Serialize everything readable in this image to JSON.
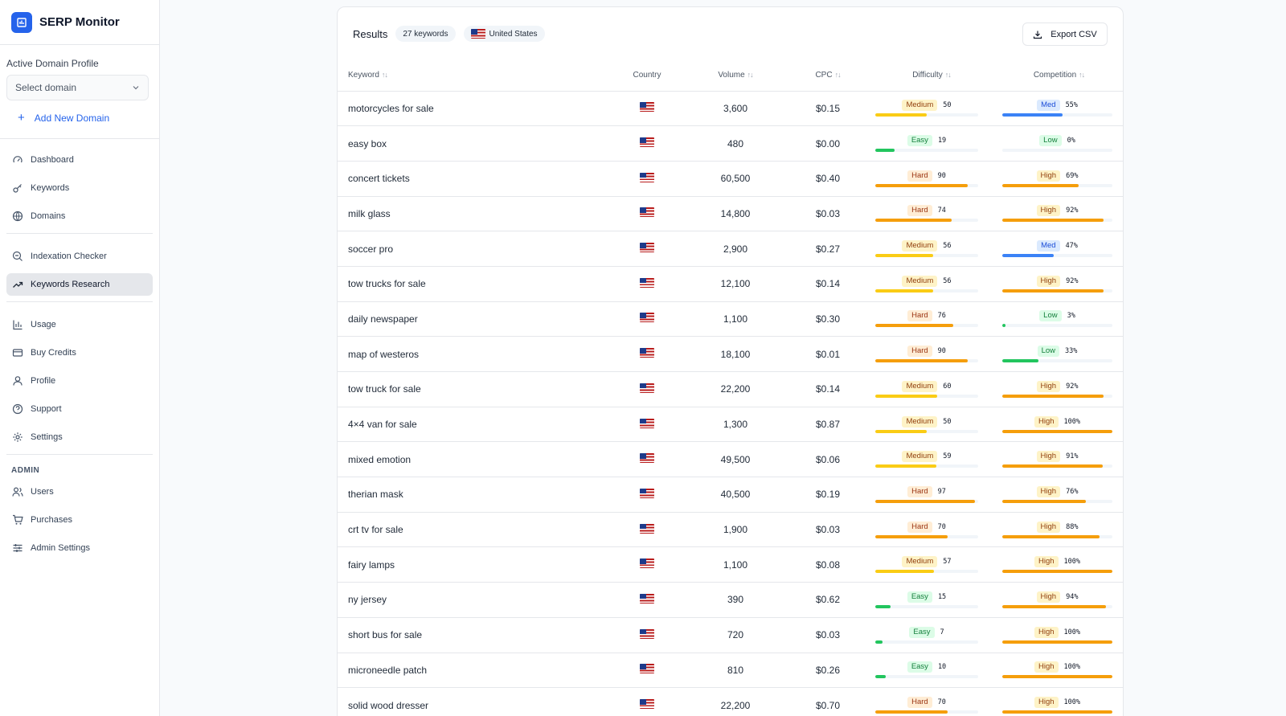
{
  "app": {
    "title": "SERP Monitor"
  },
  "sidebar": {
    "domain_profile_label": "Active Domain Profile",
    "domain_select_placeholder": "Select domain",
    "add_domain_label": "Add New Domain",
    "admin_label": "ADMIN",
    "nav_main": [
      {
        "label": "Dashboard",
        "icon": "gauge-icon"
      },
      {
        "label": "Keywords",
        "icon": "key-icon"
      },
      {
        "label": "Domains",
        "icon": "globe-icon"
      }
    ],
    "nav_tools": [
      {
        "label": "Indexation Checker",
        "icon": "search-zoom-icon"
      },
      {
        "label": "Keywords Research",
        "icon": "trending-up-icon",
        "active": true
      }
    ],
    "nav_account": [
      {
        "label": "Usage",
        "icon": "bar-chart-icon"
      },
      {
        "label": "Buy Credits",
        "icon": "credit-card-icon"
      },
      {
        "label": "Profile",
        "icon": "user-icon"
      },
      {
        "label": "Support",
        "icon": "help-circle-icon"
      },
      {
        "label": "Settings",
        "icon": "gear-icon"
      }
    ],
    "nav_admin": [
      {
        "label": "Users",
        "icon": "users-icon"
      },
      {
        "label": "Purchases",
        "icon": "cart-icon"
      },
      {
        "label": "Admin Settings",
        "icon": "sliders-icon"
      }
    ]
  },
  "results": {
    "title": "Results",
    "count_badge": "27 keywords",
    "country_badge": "United States",
    "export_label": "Export CSV",
    "columns": {
      "keyword": "Keyword",
      "country": "Country",
      "volume": "Volume",
      "cpc": "CPC",
      "difficulty": "Difficulty",
      "competition": "Competition"
    },
    "rows": [
      {
        "keyword": "motorcycles for sale",
        "volume": "3,600",
        "cpc": "$0.15",
        "difficulty_level": "Medium",
        "difficulty": 50,
        "competition_level": "Med",
        "competition": "55%",
        "competition_value": 55
      },
      {
        "keyword": "easy box",
        "volume": "480",
        "cpc": "$0.00",
        "difficulty_level": "Easy",
        "difficulty": 19,
        "competition_level": "Low",
        "competition": "0%",
        "competition_value": 0
      },
      {
        "keyword": "concert tickets",
        "volume": "60,500",
        "cpc": "$0.40",
        "difficulty_level": "Hard",
        "difficulty": 90,
        "competition_level": "High",
        "competition": "69%",
        "competition_value": 69
      },
      {
        "keyword": "milk glass",
        "volume": "14,800",
        "cpc": "$0.03",
        "difficulty_level": "Hard",
        "difficulty": 74,
        "competition_level": "High",
        "competition": "92%",
        "competition_value": 92
      },
      {
        "keyword": "soccer pro",
        "volume": "2,900",
        "cpc": "$0.27",
        "difficulty_level": "Medium",
        "difficulty": 56,
        "competition_level": "Med",
        "competition": "47%",
        "competition_value": 47
      },
      {
        "keyword": "tow trucks for sale",
        "volume": "12,100",
        "cpc": "$0.14",
        "difficulty_level": "Medium",
        "difficulty": 56,
        "competition_level": "High",
        "competition": "92%",
        "competition_value": 92
      },
      {
        "keyword": "daily newspaper",
        "volume": "1,100",
        "cpc": "$0.30",
        "difficulty_level": "Hard",
        "difficulty": 76,
        "competition_level": "Low",
        "competition": "3%",
        "competition_value": 3
      },
      {
        "keyword": "map of westeros",
        "volume": "18,100",
        "cpc": "$0.01",
        "difficulty_level": "Hard",
        "difficulty": 90,
        "competition_level": "Low",
        "competition": "33%",
        "competition_value": 33
      },
      {
        "keyword": "tow truck for sale",
        "volume": "22,200",
        "cpc": "$0.14",
        "difficulty_level": "Medium",
        "difficulty": 60,
        "competition_level": "High",
        "competition": "92%",
        "competition_value": 92
      },
      {
        "keyword": "4×4 van for sale",
        "volume": "1,300",
        "cpc": "$0.87",
        "difficulty_level": "Medium",
        "difficulty": 50,
        "competition_level": "High",
        "competition": "100%",
        "competition_value": 100
      },
      {
        "keyword": "mixed emotion",
        "volume": "49,500",
        "cpc": "$0.06",
        "difficulty_level": "Medium",
        "difficulty": 59,
        "competition_level": "High",
        "competition": "91%",
        "competition_value": 91
      },
      {
        "keyword": "therian mask",
        "volume": "40,500",
        "cpc": "$0.19",
        "difficulty_level": "Hard",
        "difficulty": 97,
        "competition_level": "High",
        "competition": "76%",
        "competition_value": 76
      },
      {
        "keyword": "crt tv for sale",
        "volume": "1,900",
        "cpc": "$0.03",
        "difficulty_level": "Hard",
        "difficulty": 70,
        "competition_level": "High",
        "competition": "88%",
        "competition_value": 88
      },
      {
        "keyword": "fairy lamps",
        "volume": "1,100",
        "cpc": "$0.08",
        "difficulty_level": "Medium",
        "difficulty": 57,
        "competition_level": "High",
        "competition": "100%",
        "competition_value": 100
      },
      {
        "keyword": "ny jersey",
        "volume": "390",
        "cpc": "$0.62",
        "difficulty_level": "Easy",
        "difficulty": 15,
        "competition_level": "High",
        "competition": "94%",
        "competition_value": 94
      },
      {
        "keyword": "short bus for sale",
        "volume": "720",
        "cpc": "$0.03",
        "difficulty_level": "Easy",
        "difficulty": 7,
        "competition_level": "High",
        "competition": "100%",
        "competition_value": 100
      },
      {
        "keyword": "microneedle patch",
        "volume": "810",
        "cpc": "$0.26",
        "difficulty_level": "Easy",
        "difficulty": 10,
        "competition_level": "High",
        "competition": "100%",
        "competition_value": 100
      },
      {
        "keyword": "solid wood dresser",
        "volume": "22,200",
        "cpc": "$0.70",
        "difficulty_level": "Hard",
        "difficulty": 70,
        "competition_level": "High",
        "competition": "100%",
        "competition_value": 100
      }
    ]
  },
  "colors": {
    "accent": "#2563eb",
    "easy": "#22c55e",
    "medium": "#facc15",
    "hard": "#f59e0b",
    "med_competition": "#3b82f6"
  }
}
